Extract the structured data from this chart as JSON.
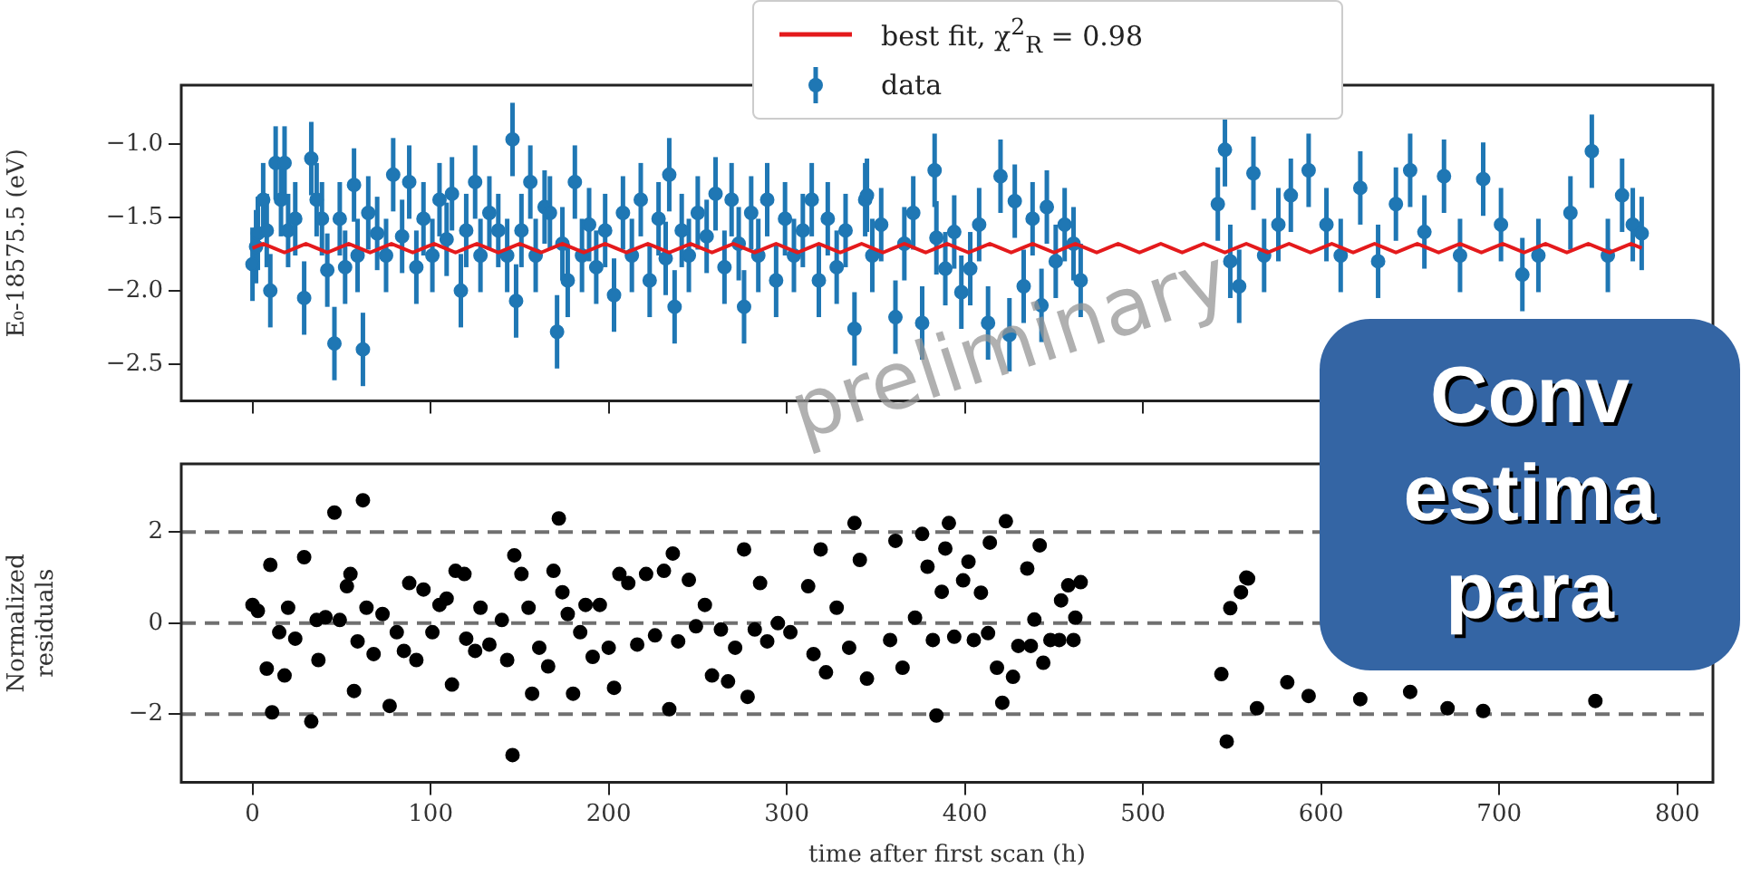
{
  "chart_data": [
    {
      "type": "scatter",
      "xlim": [
        -40,
        820
      ],
      "ylim": [
        -2.75,
        -0.6
      ],
      "xticks": [
        0,
        100,
        200,
        300,
        400,
        500,
        600,
        700,
        800
      ],
      "yticks": [
        {
          "value": -2.5,
          "label": "−2.5"
        },
        {
          "value": -2,
          "label": "−2.0"
        },
        {
          "value": -1.5,
          "label": "−1.5"
        },
        {
          "value": -1,
          "label": "−1.0"
        }
      ],
      "tick_labels": "y",
      "ylabel": "E₀-18575.5 (eV)",
      "grid": false,
      "legend": "top",
      "series": [
        {
          "name": "best fit, χ$^{2}$$_{R}$ = 0.98",
          "type": "line",
          "color": "#e41a1c",
          "x": [
            0,
            6,
            12,
            18,
            24,
            30,
            36,
            42,
            48,
            54,
            60,
            66,
            72,
            78,
            84,
            90,
            96,
            102,
            108,
            114,
            120,
            126,
            132,
            138,
            144,
            150,
            156,
            162,
            168,
            174,
            180,
            186,
            192,
            198,
            204,
            210,
            216,
            222,
            228,
            234,
            240,
            246,
            252,
            258,
            264,
            270,
            276,
            282,
            288,
            294,
            300,
            306,
            312,
            318,
            324,
            330,
            336,
            342,
            348,
            354,
            360,
            366,
            372,
            378,
            384,
            390,
            396,
            402,
            408,
            414,
            420,
            426,
            432,
            438,
            444,
            450,
            456,
            462,
            468,
            474,
            480,
            486,
            492,
            498,
            504,
            510,
            516,
            522,
            528,
            534,
            540,
            546,
            552,
            558,
            564,
            570,
            576,
            582,
            588,
            594,
            600,
            606,
            612,
            618,
            624,
            630,
            636,
            642,
            648,
            654,
            660,
            666,
            672,
            678,
            684,
            690,
            696,
            702,
            708,
            714,
            720,
            726,
            732,
            738,
            744,
            750,
            756,
            762,
            768,
            774,
            780
          ],
          "values": [
            -1.71,
            -1.68,
            -1.71,
            -1.74,
            -1.71,
            -1.68,
            -1.71,
            -1.74,
            -1.71,
            -1.68,
            -1.71,
            -1.74,
            -1.71,
            -1.68,
            -1.71,
            -1.74,
            -1.71,
            -1.68,
            -1.71,
            -1.74,
            -1.71,
            -1.68,
            -1.71,
            -1.74,
            -1.71,
            -1.68,
            -1.71,
            -1.74,
            -1.71,
            -1.68,
            -1.71,
            -1.74,
            -1.71,
            -1.68,
            -1.71,
            -1.74,
            -1.71,
            -1.68,
            -1.71,
            -1.74,
            -1.71,
            -1.68,
            -1.71,
            -1.74,
            -1.71,
            -1.68,
            -1.71,
            -1.74,
            -1.71,
            -1.68,
            -1.71,
            -1.74,
            -1.71,
            -1.68,
            -1.71,
            -1.74,
            -1.71,
            -1.68,
            -1.71,
            -1.74,
            -1.71,
            -1.68,
            -1.71,
            -1.74,
            -1.71,
            -1.68,
            -1.71,
            -1.74,
            -1.71,
            -1.68,
            -1.71,
            -1.74,
            -1.71,
            -1.68,
            -1.71,
            -1.74,
            -1.71,
            -1.68,
            -1.71,
            -1.74,
            -1.71,
            -1.68,
            -1.71,
            -1.74,
            -1.71,
            -1.68,
            -1.71,
            -1.74,
            -1.71,
            -1.68,
            -1.71,
            -1.74,
            -1.71,
            -1.68,
            -1.71,
            -1.74,
            -1.71,
            -1.68,
            -1.71,
            -1.74,
            -1.71,
            -1.68,
            -1.71,
            -1.74,
            -1.71,
            -1.68,
            -1.71,
            -1.74,
            -1.71,
            -1.68,
            -1.71,
            -1.74,
            -1.71,
            -1.68,
            -1.71,
            -1.74,
            -1.71,
            -1.68,
            -1.71,
            -1.74,
            -1.71,
            -1.68,
            -1.71,
            -1.74,
            -1.71,
            -1.68,
            -1.71,
            -1.74,
            -1.71,
            -1.68,
            -1.71
          ]
        },
        {
          "name": "data",
          "type": "scatter",
          "marker": "circle",
          "color": "#1f77b4",
          "x": [
            0,
            2,
            3,
            6,
            8,
            10,
            13,
            16,
            18,
            20,
            24,
            29,
            33,
            36,
            39,
            42,
            46,
            49,
            52,
            57,
            59,
            62,
            65,
            70,
            75,
            79,
            84,
            88,
            92,
            96,
            101,
            105,
            109,
            112,
            117,
            120,
            125,
            128,
            133,
            138,
            143,
            146,
            148,
            151,
            156,
            159,
            164,
            167,
            171,
            174,
            177,
            181,
            185,
            189,
            193,
            198,
            203,
            208,
            213,
            218,
            223,
            228,
            232,
            234,
            237,
            241,
            245,
            250,
            255,
            260,
            265,
            269,
            273,
            276,
            280,
            284,
            289,
            294,
            299,
            304,
            309,
            314,
            318,
            323,
            328,
            333,
            338,
            344,
            345,
            348,
            353,
            361,
            366,
            371,
            376,
            383,
            384,
            389,
            394,
            398,
            403,
            408,
            413,
            420,
            425,
            428,
            433,
            438,
            443,
            446,
            451,
            456,
            461,
            465,
            542,
            546,
            549,
            554,
            562,
            568,
            576,
            583,
            593,
            603,
            611,
            622,
            632,
            642,
            650,
            658,
            669,
            678,
            691,
            701,
            713,
            722,
            740,
            752,
            761,
            769,
            775,
            780
          ],
          "values": [
            -1.82,
            -1.7,
            -1.61,
            -1.38,
            -1.59,
            -2.0,
            -1.13,
            -1.38,
            -1.13,
            -1.59,
            -1.51,
            -2.05,
            -1.1,
            -1.38,
            -1.51,
            -1.86,
            -2.36,
            -1.51,
            -1.84,
            -1.28,
            -1.76,
            -2.4,
            -1.47,
            -1.61,
            -1.76,
            -1.21,
            -1.63,
            -1.26,
            -1.84,
            -1.51,
            -1.76,
            -1.38,
            -1.65,
            -1.34,
            -2.0,
            -1.59,
            -1.26,
            -1.76,
            -1.47,
            -1.59,
            -1.76,
            -0.97,
            -2.07,
            -1.59,
            -1.26,
            -1.76,
            -1.43,
            -1.47,
            -2.28,
            -1.68,
            -1.93,
            -1.26,
            -1.76,
            -1.55,
            -1.84,
            -1.59,
            -2.03,
            -1.47,
            -1.76,
            -1.38,
            -1.93,
            -1.51,
            -1.78,
            -1.21,
            -2.11,
            -1.59,
            -1.76,
            -1.47,
            -1.63,
            -1.34,
            -1.84,
            -1.38,
            -1.68,
            -2.11,
            -1.47,
            -1.76,
            -1.38,
            -1.93,
            -1.51,
            -1.76,
            -1.59,
            -1.38,
            -1.93,
            -1.51,
            -1.84,
            -1.59,
            -2.26,
            -1.38,
            -1.35,
            -1.76,
            -1.55,
            -2.18,
            -1.68,
            -1.47,
            -2.22,
            -1.18,
            -1.64,
            -1.85,
            -1.6,
            -2.01,
            -1.85,
            -1.55,
            -2.22,
            -1.22,
            -2.3,
            -1.39,
            -1.97,
            -1.51,
            -2.1,
            -1.43,
            -1.8,
            -1.55,
            -1.68,
            -1.93,
            -1.41,
            -1.04,
            -1.8,
            -1.97,
            -1.2,
            -1.76,
            -1.55,
            -1.35,
            -1.18,
            -1.55,
            -1.76,
            -1.3,
            -1.8,
            -1.41,
            -1.18,
            -1.6,
            -1.22,
            -1.76,
            -1.24,
            -1.55,
            -1.89,
            -1.76,
            -1.47,
            -1.05,
            -1.76,
            -1.35,
            -1.55,
            -1.61
          ],
          "errors": [
            0.25,
            0.25,
            0.25,
            0.25,
            0.25,
            0.25,
            0.25,
            0.25,
            0.25,
            0.25,
            0.25,
            0.25,
            0.25,
            0.25,
            0.25,
            0.25,
            0.25,
            0.25,
            0.25,
            0.25,
            0.25,
            0.25,
            0.25,
            0.25,
            0.25,
            0.25,
            0.25,
            0.25,
            0.25,
            0.25,
            0.25,
            0.25,
            0.25,
            0.25,
            0.25,
            0.25,
            0.25,
            0.25,
            0.25,
            0.25,
            0.25,
            0.25,
            0.25,
            0.25,
            0.25,
            0.25,
            0.25,
            0.25,
            0.25,
            0.25,
            0.25,
            0.25,
            0.25,
            0.25,
            0.25,
            0.25,
            0.25,
            0.25,
            0.25,
            0.25,
            0.25,
            0.25,
            0.25,
            0.25,
            0.25,
            0.25,
            0.25,
            0.25,
            0.25,
            0.25,
            0.25,
            0.25,
            0.25,
            0.25,
            0.25,
            0.25,
            0.25,
            0.25,
            0.25,
            0.25,
            0.25,
            0.25,
            0.25,
            0.25,
            0.25,
            0.25,
            0.25,
            0.25,
            0.25,
            0.25,
            0.25,
            0.25,
            0.25,
            0.25,
            0.25,
            0.25,
            0.25,
            0.25,
            0.25,
            0.25,
            0.25,
            0.25,
            0.25,
            0.25,
            0.25,
            0.25,
            0.25,
            0.25,
            0.25,
            0.25,
            0.25,
            0.25,
            0.25,
            0.25,
            0.25,
            0.25,
            0.25,
            0.25,
            0.25,
            0.25,
            0.25,
            0.25,
            0.25,
            0.25,
            0.25,
            0.25,
            0.25,
            0.25,
            0.25,
            0.25,
            0.25,
            0.25,
            0.25,
            0.25,
            0.25,
            0.25,
            0.25,
            0.25,
            0.25,
            0.25,
            0.25,
            0.25
          ]
        }
      ]
    },
    {
      "type": "scatter",
      "xlim": [
        -40,
        820
      ],
      "ylim": [
        -3.5,
        3.5
      ],
      "xticks": [
        0,
        100,
        200,
        300,
        400,
        500,
        600,
        700,
        800
      ],
      "yticks": [
        {
          "value": -2,
          "label": "−2"
        },
        0,
        2
      ],
      "xlabel": "time after first scan (h)",
      "ylabel": "Normalized residuals",
      "grid": false,
      "marker": "circle",
      "ref_lines": [
        {
          "axis": "y",
          "value": 2,
          "color": "#707070",
          "line_style": "dashed"
        },
        {
          "axis": "y",
          "value": 0,
          "color": "#707070",
          "line_style": "dashed"
        },
        {
          "axis": "y",
          "value": -2,
          "color": "#707070",
          "line_style": "dashed"
        }
      ],
      "annotations": [
        "preliminary"
      ],
      "series": [
        {
          "type": "scatter",
          "color": "#000000",
          "x": [
            0,
            3,
            8,
            10,
            11,
            15,
            18,
            20,
            24,
            29,
            33,
            36,
            37,
            41,
            46,
            49,
            53,
            55,
            57,
            59,
            62,
            64,
            68,
            73,
            77,
            81,
            85,
            88,
            92,
            96,
            101,
            105,
            109,
            112,
            114,
            119,
            120,
            125,
            128,
            133,
            140,
            143,
            146,
            147,
            151,
            155,
            157,
            161,
            166,
            169,
            172,
            174,
            177,
            180,
            184,
            187,
            191,
            195,
            200,
            203,
            206,
            211,
            216,
            221,
            226,
            231,
            234,
            236,
            239,
            245,
            249,
            254,
            258,
            263,
            267,
            271,
            276,
            278,
            282,
            285,
            289,
            295,
            302,
            312,
            315,
            319,
            322,
            328,
            335,
            338,
            341,
            345,
            358,
            361,
            365,
            372,
            376,
            379,
            382,
            384,
            387,
            389,
            391,
            394,
            399,
            402,
            405,
            409,
            413,
            414,
            418,
            421,
            423,
            427,
            430,
            435,
            437,
            439,
            442,
            444,
            448,
            453,
            454,
            458,
            461,
            462,
            465,
            544,
            547,
            549,
            555,
            558,
            559,
            564,
            581,
            593,
            622,
            650,
            671,
            691,
            754
          ],
          "values": [
            0.4,
            0.27,
            -1.0,
            1.28,
            -1.96,
            -0.2,
            -1.15,
            0.34,
            -0.34,
            1.45,
            -2.16,
            0.07,
            -0.81,
            0.13,
            2.43,
            0.07,
            0.81,
            1.08,
            -1.49,
            -0.4,
            2.7,
            0.34,
            -0.68,
            0.2,
            -1.82,
            -0.2,
            -0.61,
            0.88,
            -0.81,
            0.74,
            -0.2,
            0.4,
            0.54,
            -1.35,
            1.15,
            1.08,
            -0.34,
            -0.61,
            0.34,
            -0.47,
            0.07,
            -0.81,
            -2.9,
            1.49,
            1.08,
            0.34,
            -1.55,
            -0.54,
            -0.95,
            1.15,
            2.3,
            0.68,
            0.2,
            -1.55,
            -0.2,
            0.4,
            -0.74,
            0.4,
            -0.54,
            -1.42,
            1.08,
            0.88,
            -0.47,
            1.08,
            -0.27,
            1.15,
            -1.89,
            1.53,
            -0.4,
            0.95,
            -0.07,
            0.4,
            -1.15,
            -0.14,
            -1.28,
            -0.54,
            1.62,
            -1.62,
            -0.14,
            0.88,
            -0.4,
            0,
            -0.2,
            0.81,
            -0.68,
            1.62,
            -1.08,
            0.34,
            -0.54,
            2.2,
            1.39,
            -1.22,
            -0.37,
            1.81,
            -0.98,
            0.12,
            1.96,
            1.24,
            -0.37,
            -2.03,
            0.69,
            1.64,
            2.2,
            -0.3,
            0.94,
            1.35,
            -0.37,
            0.67,
            -0.22,
            1.77,
            -0.98,
            -1.75,
            2.24,
            -1.18,
            -0.5,
            1.2,
            -0.5,
            0.08,
            1.71,
            -0.87,
            -0.37,
            -0.37,
            0.5,
            0.83,
            -0.37,
            0.12,
            0.9,
            -1.12,
            -2.6,
            0.33,
            0.68,
            1.0,
            0.98,
            -1.87,
            -1.3,
            -1.6,
            -1.67,
            -1.51,
            -1.87,
            -1.93,
            -1.71
          ]
        }
      ]
    },
    {
      "type": "other",
      "annotations": [
        "Conv",
        "estima",
        "para"
      ]
    }
  ]
}
